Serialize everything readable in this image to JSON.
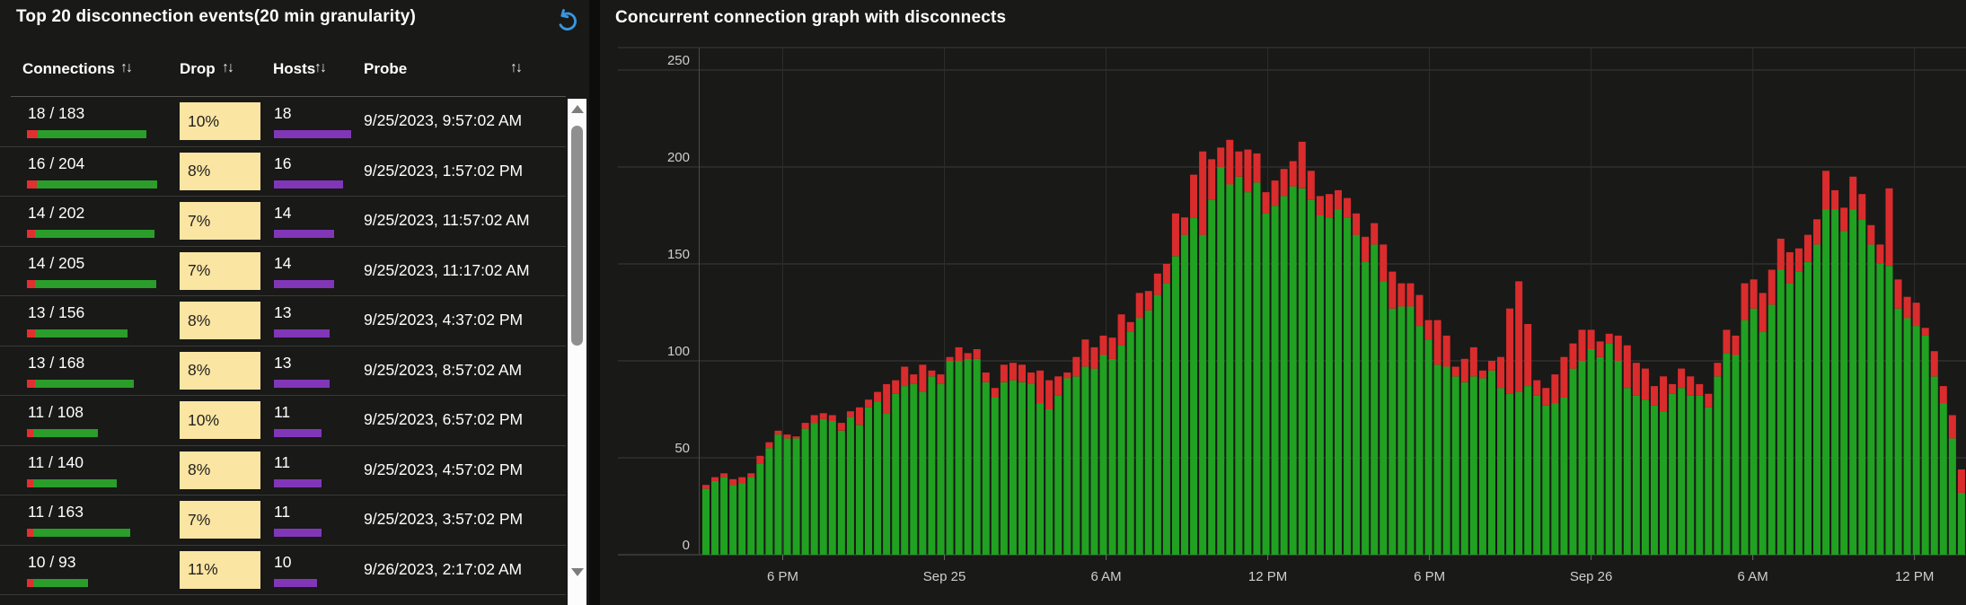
{
  "table_panel": {
    "title": "Top 20 disconnection events(20 min granularity)",
    "sort_glyph": "↑↓",
    "columns": [
      {
        "label": "Connections"
      },
      {
        "label": "Drop"
      },
      {
        "label": "Hosts"
      },
      {
        "label": "Probe"
      }
    ],
    "rows": [
      {
        "connections": "18 / 183",
        "conn_drop": 18,
        "conn_total": 183,
        "drop_pct": "10%",
        "hosts": 18,
        "probe": "9/25/2023, 9:57:02 AM"
      },
      {
        "connections": "16 / 204",
        "conn_drop": 16,
        "conn_total": 204,
        "drop_pct": "8%",
        "hosts": 16,
        "probe": "9/25/2023, 1:57:02 PM"
      },
      {
        "connections": "14 / 202",
        "conn_drop": 14,
        "conn_total": 202,
        "drop_pct": "7%",
        "hosts": 14,
        "probe": "9/25/2023, 11:57:02 AM"
      },
      {
        "connections": "14 / 205",
        "conn_drop": 14,
        "conn_total": 205,
        "drop_pct": "7%",
        "hosts": 14,
        "probe": "9/25/2023, 11:17:02 AM"
      },
      {
        "connections": "13 / 156",
        "conn_drop": 13,
        "conn_total": 156,
        "drop_pct": "8%",
        "hosts": 13,
        "probe": "9/25/2023, 4:37:02 PM"
      },
      {
        "connections": "13 / 168",
        "conn_drop": 13,
        "conn_total": 168,
        "drop_pct": "8%",
        "hosts": 13,
        "probe": "9/25/2023, 8:57:02 AM"
      },
      {
        "connections": "11 / 108",
        "conn_drop": 11,
        "conn_total": 108,
        "drop_pct": "10%",
        "hosts": 11,
        "probe": "9/25/2023, 6:57:02 PM"
      },
      {
        "connections": "11 / 140",
        "conn_drop": 11,
        "conn_total": 140,
        "drop_pct": "8%",
        "hosts": 11,
        "probe": "9/25/2023, 4:57:02 PM"
      },
      {
        "connections": "11 / 163",
        "conn_drop": 11,
        "conn_total": 163,
        "drop_pct": "7%",
        "hosts": 11,
        "probe": "9/25/2023, 3:57:02 PM"
      },
      {
        "connections": "10 / 93",
        "conn_drop": 10,
        "conn_total": 93,
        "drop_pct": "11%",
        "hosts": 10,
        "probe": "9/26/2023, 2:17:02 AM"
      }
    ]
  },
  "chart_panel": {
    "title": "Concurrent connection graph with disconnects"
  },
  "chart_data": {
    "type": "bar",
    "stacked": true,
    "title": "Concurrent connection graph with disconnects",
    "ylim": [
      0,
      250
    ],
    "y_ticks": [
      0,
      50,
      100,
      150,
      200,
      250
    ],
    "x_tick_labels": [
      "6 PM",
      "Sep 25",
      "6 AM",
      "12 PM",
      "6 PM",
      "Sep 26",
      "6 AM",
      "12 PM"
    ],
    "x_tick_positions": [
      9,
      26.9,
      44.8,
      62.7,
      80.6,
      98.5,
      116.4,
      134.3
    ],
    "grid": true,
    "legend": "none",
    "series": [
      {
        "name": "connections",
        "color": "#21a121",
        "values": [
          34,
          38,
          40,
          36,
          37,
          40,
          47,
          55,
          62,
          60,
          60,
          65,
          68,
          70,
          69,
          64,
          71,
          67,
          76,
          79,
          73,
          83,
          87,
          88,
          84,
          92,
          88,
          100,
          100,
          101,
          101,
          89,
          81,
          89,
          90,
          89,
          88,
          78,
          75,
          82,
          91,
          92,
          97,
          96,
          103,
          101,
          108,
          115,
          122,
          126,
          134,
          140,
          154,
          165,
          174,
          165,
          183,
          200,
          191,
          195,
          187,
          192,
          176,
          180,
          185,
          190,
          189,
          183,
          175,
          174,
          178,
          174,
          165,
          151,
          160,
          141,
          127,
          128,
          128,
          118,
          111,
          98,
          97,
          92,
          89,
          92,
          91,
          95,
          86,
          83,
          84,
          87,
          82,
          77,
          78,
          81,
          96,
          100,
          106,
          102,
          109,
          100,
          86,
          82,
          80,
          77,
          74,
          83,
          86,
          82,
          82,
          76,
          92,
          104,
          103,
          121,
          127,
          115,
          129,
          147,
          140,
          146,
          151,
          160,
          178,
          178,
          167,
          178,
          173,
          160,
          150,
          149,
          127,
          122,
          118,
          113,
          92,
          78,
          60,
          32
        ]
      },
      {
        "name": "disconnects",
        "color": "#da2c2c",
        "values": [
          2,
          2,
          2,
          3,
          3,
          2,
          4,
          3,
          2,
          2,
          1,
          3,
          4,
          3,
          3,
          4,
          3,
          9,
          4,
          5,
          15,
          7,
          10,
          5,
          14,
          3,
          5,
          2,
          7,
          3,
          5,
          5,
          5,
          9,
          9,
          9,
          6,
          17,
          15,
          10,
          3,
          10,
          14,
          11,
          10,
          11,
          16,
          5,
          13,
          10,
          11,
          10,
          22,
          9,
          22,
          43,
          21,
          10,
          23,
          13,
          22,
          15,
          11,
          13,
          14,
          13,
          24,
          15,
          10,
          12,
          10,
          10,
          11,
          13,
          11,
          19,
          19,
          12,
          12,
          16,
          10,
          23,
          16,
          5,
          12,
          15,
          4,
          5,
          16,
          44,
          57,
          32,
          8,
          9,
          15,
          21,
          13,
          16,
          10,
          8,
          5,
          13,
          22,
          17,
          16,
          10,
          18,
          5,
          10,
          10,
          6,
          7,
          7,
          12,
          10,
          19,
          15,
          20,
          18,
          16,
          16,
          12,
          14,
          13,
          20,
          10,
          12,
          17,
          13,
          10,
          10,
          40,
          15,
          11,
          12,
          4,
          13,
          9,
          12,
          12
        ]
      }
    ]
  },
  "colors": {
    "background": "#191918",
    "green_bar": "#21a121",
    "red_bar": "#da2c2c",
    "table_green": "#2a9d2a",
    "table_red": "#e03030",
    "drop_cell_bg": "#fbe5a3",
    "hosts_bar": "#8136b8",
    "refresh_icon": "#3a96dd",
    "axis_text": "#cfcecd",
    "gridline": "#3a3a38"
  },
  "icons": {
    "refresh": "undo-arrow",
    "sort": "up-down-arrows",
    "scroll_up": "triangle-up",
    "scroll_down": "triangle-down"
  }
}
